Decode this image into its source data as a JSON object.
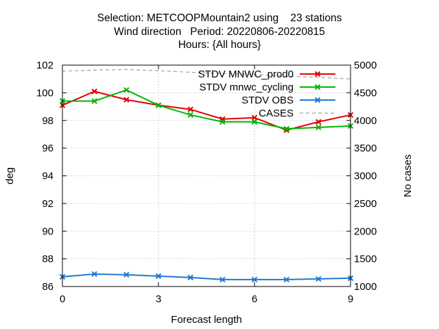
{
  "chart_data": {
    "type": "line",
    "title_lines": [
      "Selection: METCOOPMountain2 using    23 stations",
      "Wind direction   Period: 20220806-20220815",
      "Hours: {All hours}"
    ],
    "xlabel": "Forecast length",
    "ylabel": "deg",
    "y2label": "No cases",
    "xlim": [
      0,
      9
    ],
    "ylim": [
      86,
      102
    ],
    "y2lim": [
      1000,
      5000
    ],
    "xticks": [
      0,
      3,
      6,
      9
    ],
    "yticks": [
      86,
      88,
      90,
      92,
      94,
      96,
      98,
      100,
      102
    ],
    "y2ticks": [
      1000,
      1500,
      2000,
      2500,
      3000,
      3500,
      4000,
      4500,
      5000
    ],
    "grid": true,
    "legend_position": "top-right",
    "x": [
      0,
      1,
      2,
      3,
      4,
      5,
      6,
      7,
      8,
      9
    ],
    "series": [
      {
        "name": "STDV MNWC_prod0",
        "axis": "y",
        "color": "#e00000",
        "marker": "x",
        "values": [
          99.1,
          100.1,
          99.5,
          99.1,
          98.8,
          98.1,
          98.2,
          97.3,
          97.9,
          98.4
        ]
      },
      {
        "name": "STDV mnwc_cycling",
        "axis": "y",
        "color": "#00b400",
        "marker": "x",
        "values": [
          99.4,
          99.4,
          100.2,
          99.1,
          98.4,
          97.9,
          97.9,
          97.4,
          97.5,
          97.6
        ]
      },
      {
        "name": "STDV OBS",
        "axis": "y",
        "color": "#1f77d4",
        "marker": "x",
        "values": [
          86.7,
          86.9,
          86.85,
          86.75,
          86.65,
          86.5,
          86.5,
          86.5,
          86.55,
          86.6
        ]
      },
      {
        "name": "CASES",
        "axis": "y2",
        "color": "#a0a0a0",
        "marker": "none",
        "dashed": true,
        "values": [
          4890,
          4910,
          4920,
          4900,
          4870,
          4850,
          4830,
          4800,
          4780,
          4750
        ]
      }
    ]
  }
}
